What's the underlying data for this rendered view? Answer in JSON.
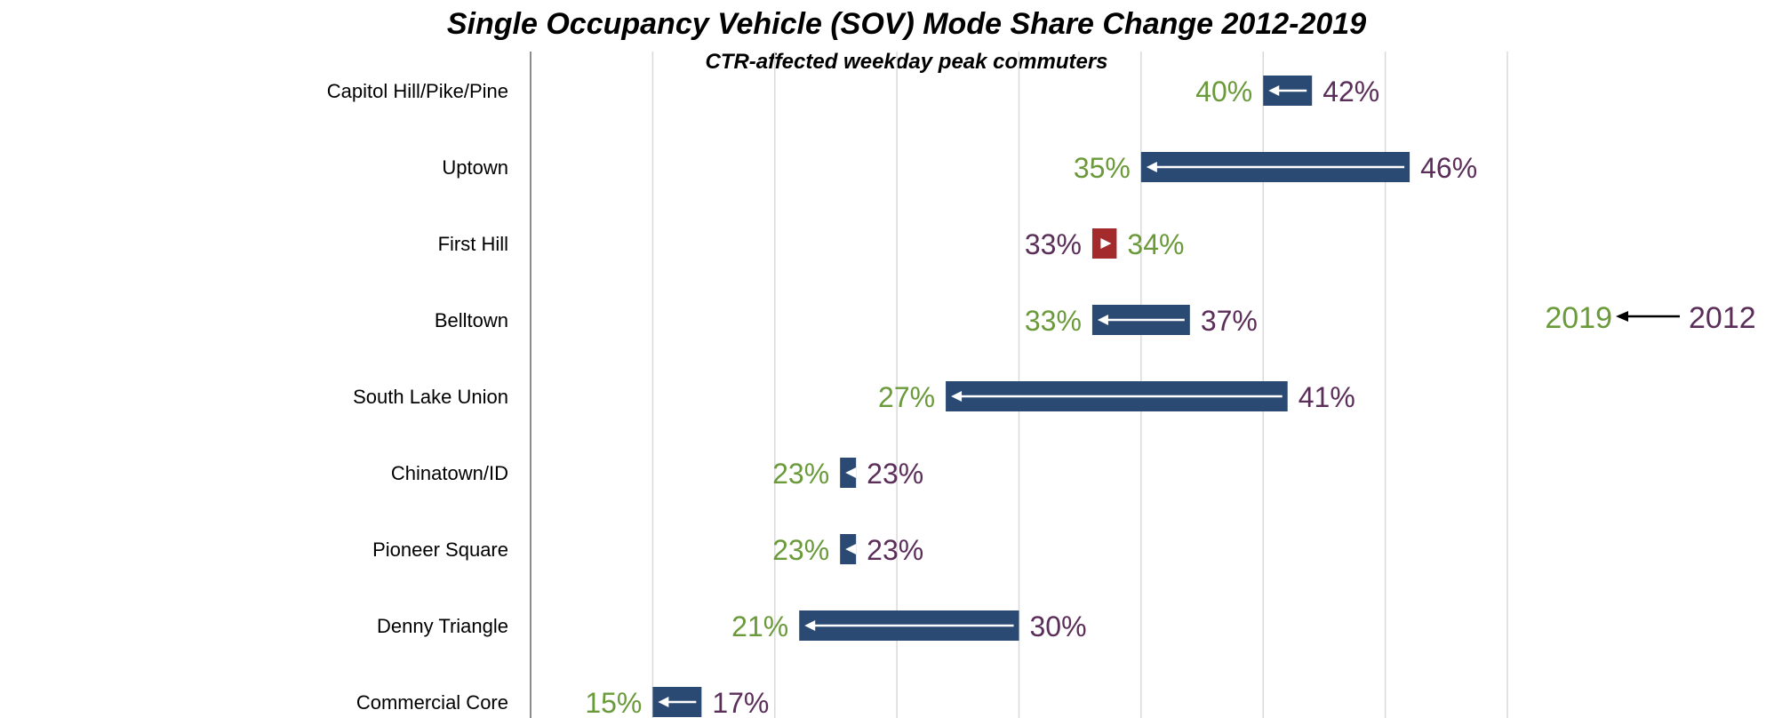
{
  "chart_data": {
    "type": "dumbbell",
    "title": "Single Occupancy Vehicle (SOV) Mode Share Change 2012-2019",
    "subtitle": "CTR-affected weekday peak commuters",
    "colors": {
      "label_2019": "#6a9a3a",
      "label_2012": "#5b2e5a",
      "bar_decrease": "#2a4a73",
      "bar_increase": "#a32b2b"
    },
    "xlim": [
      10,
      50
    ],
    "gridlines": [
      10,
      15,
      20,
      25,
      30,
      35,
      40,
      45,
      50
    ],
    "legend": {
      "from_label": "2012",
      "to_label": "2019"
    },
    "rows": [
      {
        "category": "Capitol Hill/Pike/Pine",
        "v2012": 42,
        "v2019": 40,
        "label2012": "42%",
        "label2019": "40%"
      },
      {
        "category": "Uptown",
        "v2012": 46,
        "v2019": 35,
        "label2012": "46%",
        "label2019": "35%"
      },
      {
        "category": "First Hill",
        "v2012": 33,
        "v2019": 34,
        "label2012": "33%",
        "label2019": "34%"
      },
      {
        "category": "Belltown",
        "v2012": 37,
        "v2019": 33,
        "label2012": "37%",
        "label2019": "33%"
      },
      {
        "category": "South Lake Union",
        "v2012": 41,
        "v2019": 27,
        "label2012": "41%",
        "label2019": "27%"
      },
      {
        "category": "Chinatown/ID",
        "v2012": 23,
        "v2019": 23,
        "label2012": "23%",
        "label2019": "23%"
      },
      {
        "category": "Pioneer Square",
        "v2012": 23,
        "v2019": 23,
        "label2012": "23%",
        "label2019": "23%"
      },
      {
        "category": "Denny Triangle",
        "v2012": 30,
        "v2019": 21,
        "label2012": "30%",
        "label2019": "21%"
      },
      {
        "category": "Commercial Core",
        "v2012": 17,
        "v2019": 15,
        "label2012": "17%",
        "label2019": "15%"
      }
    ]
  }
}
